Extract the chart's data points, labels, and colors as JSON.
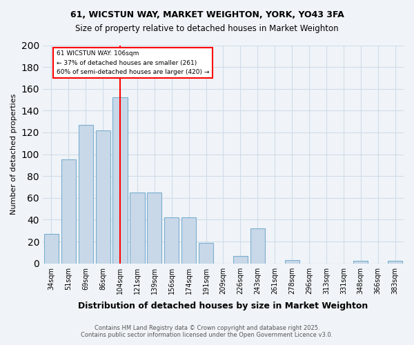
{
  "title1": "61, WICSTUN WAY, MARKET WEIGHTON, YORK, YO43 3FA",
  "title2": "Size of property relative to detached houses in Market Weighton",
  "xlabel": "Distribution of detached houses by size in Market Weighton",
  "ylabel": "Number of detached properties",
  "categories": [
    "34sqm",
    "51sqm",
    "69sqm",
    "86sqm",
    "104sqm",
    "121sqm",
    "139sqm",
    "156sqm",
    "174sqm",
    "191sqm",
    "209sqm",
    "226sqm",
    "243sqm",
    "261sqm",
    "278sqm",
    "296sqm",
    "313sqm",
    "331sqm",
    "348sqm",
    "366sqm",
    "383sqm"
  ],
  "values": [
    27,
    95,
    127,
    122,
    152,
    65,
    65,
    42,
    42,
    19,
    0,
    7,
    32,
    0,
    3,
    0,
    0,
    0,
    2,
    0,
    2
  ],
  "bar_color": "#c8d8e8",
  "bar_edge_color": "#7aadcf",
  "background_color": "#f0f4f8",
  "grid_color": "#d0dce8",
  "vline_x": 4,
  "vline_color": "red",
  "annotation_text": "61 WICSTUN WAY: 106sqm\n← 37% of detached houses are smaller (261)\n60% of semi-detached houses are larger (420) →",
  "annotation_box_color": "white",
  "annotation_box_edge_color": "red",
  "footer": "Contains HM Land Registry data © Crown copyright and database right 2025.\nContains public sector information licensed under the Open Government Licence v3.0.",
  "ylim": [
    0,
    200
  ],
  "yticks": [
    0,
    20,
    40,
    60,
    80,
    100,
    120,
    140,
    160,
    180,
    200
  ]
}
